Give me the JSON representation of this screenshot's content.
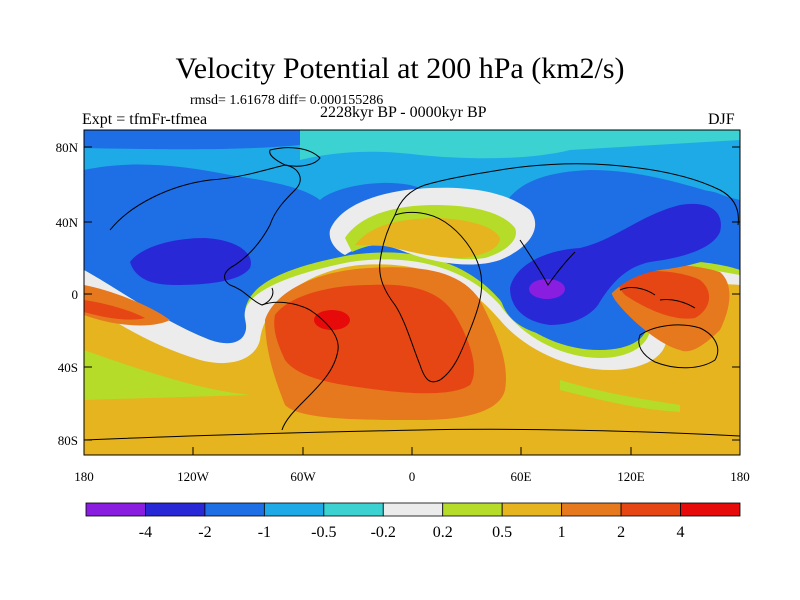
{
  "title": "Velocity Potential at 200 hPa (km2/s)",
  "stats_line": "rmsd= 1.61678 diff= 0.000155286",
  "experiment": "Expt = tfmFr-tfmea",
  "period": "2228kyr BP - 0000kyr BP",
  "season": "DJF",
  "y_ticks": [
    "80N",
    "40N",
    "0",
    "40S",
    "80S"
  ],
  "x_ticks": [
    "180",
    "120W",
    "60W",
    "0",
    "60E",
    "120E",
    "180"
  ],
  "colorbar": {
    "labels": [
      "-4",
      "-2",
      "-1",
      "-0.5",
      "-0.2",
      "0.2",
      "0.5",
      "1",
      "2",
      "4"
    ],
    "colors": [
      "#8a1ee0",
      "#2828d6",
      "#1e6ee6",
      "#1eaae6",
      "#3cd2d2",
      "#ececec",
      "#b4dc28",
      "#e6b41e",
      "#e6781e",
      "#e64614",
      "#e60a0a"
    ]
  },
  "palette": {
    "ocean_background": "#1e6ee6",
    "coast": "#000000"
  }
}
